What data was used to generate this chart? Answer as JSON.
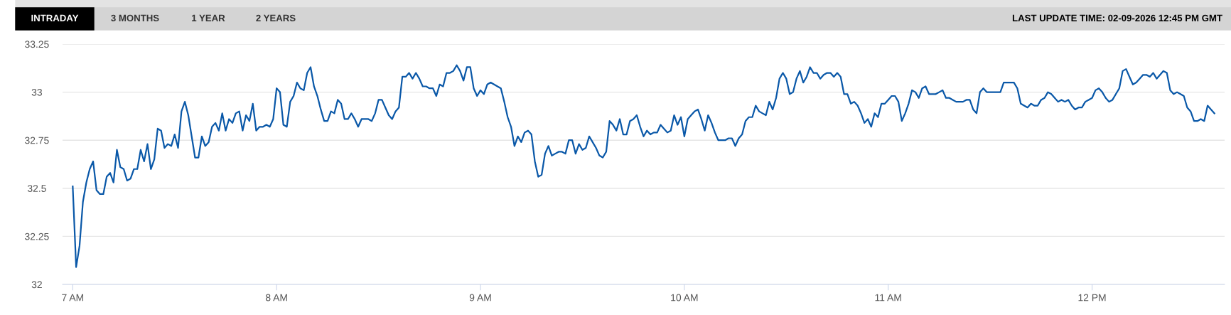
{
  "chart_data": {
    "type": "line",
    "subtitle": "LAST UPDATE TIME: 02-09-2026 12:45 PM GMT",
    "annotations": [
      "INTRADAY",
      "3 MONTHS",
      "1 YEAR",
      "2 YEARS"
    ],
    "x": [
      "2026-02-09T07:00",
      "2026-02-09T07:01",
      "2026-02-09T07:02",
      "2026-02-09T07:03",
      "2026-02-09T07:04",
      "2026-02-09T07:05",
      "2026-02-09T07:06",
      "2026-02-09T07:07",
      "2026-02-09T07:08",
      "2026-02-09T07:09",
      "2026-02-09T07:10",
      "2026-02-09T07:11",
      "2026-02-09T07:12",
      "2026-02-09T07:13",
      "2026-02-09T07:14",
      "2026-02-09T07:15",
      "2026-02-09T07:16",
      "2026-02-09T07:17",
      "2026-02-09T07:18",
      "2026-02-09T07:19",
      "2026-02-09T07:20",
      "2026-02-09T07:21",
      "2026-02-09T07:22",
      "2026-02-09T07:23",
      "2026-02-09T07:24",
      "2026-02-09T07:25",
      "2026-02-09T07:26",
      "2026-02-09T07:27",
      "2026-02-09T07:28",
      "2026-02-09T07:29",
      "2026-02-09T07:30",
      "2026-02-09T07:31",
      "2026-02-09T07:32",
      "2026-02-09T07:33",
      "2026-02-09T07:34",
      "2026-02-09T07:35",
      "2026-02-09T07:36",
      "2026-02-09T07:37",
      "2026-02-09T07:38",
      "2026-02-09T07:39",
      "2026-02-09T07:40",
      "2026-02-09T07:41",
      "2026-02-09T07:42",
      "2026-02-09T07:43",
      "2026-02-09T07:44",
      "2026-02-09T07:45",
      "2026-02-09T07:46",
      "2026-02-09T07:47",
      "2026-02-09T07:48",
      "2026-02-09T07:49",
      "2026-02-09T07:50",
      "2026-02-09T07:51",
      "2026-02-09T07:52",
      "2026-02-09T07:53",
      "2026-02-09T07:54",
      "2026-02-09T07:55",
      "2026-02-09T07:56",
      "2026-02-09T07:57",
      "2026-02-09T07:58",
      "2026-02-09T07:59",
      "2026-02-09T08:00",
      "2026-02-09T08:01",
      "2026-02-09T08:02",
      "2026-02-09T08:03",
      "2026-02-09T08:04",
      "2026-02-09T08:05",
      "2026-02-09T08:06",
      "2026-02-09T08:07",
      "2026-02-09T08:08",
      "2026-02-09T08:09",
      "2026-02-09T08:10",
      "2026-02-09T08:11",
      "2026-02-09T08:12",
      "2026-02-09T08:13",
      "2026-02-09T08:14",
      "2026-02-09T08:15",
      "2026-02-09T08:16",
      "2026-02-09T08:17",
      "2026-02-09T08:18",
      "2026-02-09T08:19",
      "2026-02-09T08:20",
      "2026-02-09T08:21",
      "2026-02-09T08:22",
      "2026-02-09T08:23",
      "2026-02-09T08:24",
      "2026-02-09T08:25",
      "2026-02-09T08:26",
      "2026-02-09T08:27",
      "2026-02-09T08:28",
      "2026-02-09T08:29",
      "2026-02-09T08:30",
      "2026-02-09T08:31",
      "2026-02-09T08:32",
      "2026-02-09T08:33",
      "2026-02-09T08:34",
      "2026-02-09T08:35",
      "2026-02-09T08:36",
      "2026-02-09T08:37",
      "2026-02-09T08:38",
      "2026-02-09T08:39",
      "2026-02-09T08:40",
      "2026-02-09T08:41",
      "2026-02-09T08:42",
      "2026-02-09T08:43",
      "2026-02-09T08:44",
      "2026-02-09T08:45",
      "2026-02-09T08:46",
      "2026-02-09T08:47",
      "2026-02-09T08:48",
      "2026-02-09T08:49",
      "2026-02-09T08:50",
      "2026-02-09T08:51",
      "2026-02-09T08:52",
      "2026-02-09T08:53",
      "2026-02-09T08:54",
      "2026-02-09T08:55",
      "2026-02-09T08:56",
      "2026-02-09T08:57",
      "2026-02-09T08:58",
      "2026-02-09T08:59",
      "2026-02-09T09:00",
      "2026-02-09T09:01",
      "2026-02-09T09:02",
      "2026-02-09T09:03",
      "2026-02-09T09:04",
      "2026-02-09T09:05",
      "2026-02-09T09:06",
      "2026-02-09T09:07",
      "2026-02-09T09:08",
      "2026-02-09T09:09",
      "2026-02-09T09:10",
      "2026-02-09T09:11",
      "2026-02-09T09:12",
      "2026-02-09T09:13",
      "2026-02-09T09:14",
      "2026-02-09T09:15",
      "2026-02-09T09:16",
      "2026-02-09T09:17",
      "2026-02-09T09:18",
      "2026-02-09T09:19",
      "2026-02-09T09:20",
      "2026-02-09T09:21",
      "2026-02-09T09:22",
      "2026-02-09T09:23",
      "2026-02-09T09:24",
      "2026-02-09T09:25",
      "2026-02-09T09:26",
      "2026-02-09T09:27",
      "2026-02-09T09:28",
      "2026-02-09T09:29",
      "2026-02-09T09:30",
      "2026-02-09T09:31",
      "2026-02-09T09:32",
      "2026-02-09T09:33",
      "2026-02-09T09:34",
      "2026-02-09T09:35",
      "2026-02-09T09:36",
      "2026-02-09T09:37",
      "2026-02-09T09:38",
      "2026-02-09T09:39",
      "2026-02-09T09:40",
      "2026-02-09T09:41",
      "2026-02-09T09:42",
      "2026-02-09T09:43",
      "2026-02-09T09:44",
      "2026-02-09T09:45",
      "2026-02-09T09:46",
      "2026-02-09T09:47",
      "2026-02-09T09:48",
      "2026-02-09T09:49",
      "2026-02-09T09:50",
      "2026-02-09T09:51",
      "2026-02-09T09:52",
      "2026-02-09T09:53",
      "2026-02-09T09:54",
      "2026-02-09T09:55",
      "2026-02-09T09:56",
      "2026-02-09T09:57",
      "2026-02-09T09:58",
      "2026-02-09T09:59",
      "2026-02-09T10:00",
      "2026-02-09T10:01",
      "2026-02-09T10:02",
      "2026-02-09T10:03",
      "2026-02-09T10:04",
      "2026-02-09T10:05",
      "2026-02-09T10:06",
      "2026-02-09T10:07",
      "2026-02-09T10:08",
      "2026-02-09T10:09",
      "2026-02-09T10:10",
      "2026-02-09T10:11",
      "2026-02-09T10:12",
      "2026-02-09T10:13",
      "2026-02-09T10:14",
      "2026-02-09T10:15",
      "2026-02-09T10:16",
      "2026-02-09T10:17",
      "2026-02-09T10:18",
      "2026-02-09T10:19",
      "2026-02-09T10:20",
      "2026-02-09T10:21",
      "2026-02-09T10:22",
      "2026-02-09T10:23",
      "2026-02-09T10:24",
      "2026-02-09T10:25",
      "2026-02-09T10:26",
      "2026-02-09T10:27",
      "2026-02-09T10:28",
      "2026-02-09T10:29",
      "2026-02-09T10:30",
      "2026-02-09T10:31",
      "2026-02-09T10:32",
      "2026-02-09T10:33",
      "2026-02-09T10:34",
      "2026-02-09T10:35",
      "2026-02-09T10:36",
      "2026-02-09T10:37",
      "2026-02-09T10:38",
      "2026-02-09T10:39",
      "2026-02-09T10:40",
      "2026-02-09T10:41",
      "2026-02-09T10:42",
      "2026-02-09T10:43",
      "2026-02-09T10:44",
      "2026-02-09T10:45",
      "2026-02-09T10:46",
      "2026-02-09T10:47",
      "2026-02-09T10:48",
      "2026-02-09T10:49",
      "2026-02-09T10:50",
      "2026-02-09T10:51",
      "2026-02-09T10:52",
      "2026-02-09T10:53",
      "2026-02-09T10:54",
      "2026-02-09T10:55",
      "2026-02-09T10:56",
      "2026-02-09T10:57",
      "2026-02-09T10:58",
      "2026-02-09T10:59",
      "2026-02-09T11:00",
      "2026-02-09T11:01",
      "2026-02-09T11:02",
      "2026-02-09T11:03",
      "2026-02-09T11:04",
      "2026-02-09T11:05",
      "2026-02-09T11:06",
      "2026-02-09T11:07",
      "2026-02-09T11:08",
      "2026-02-09T11:09",
      "2026-02-09T11:10",
      "2026-02-09T11:11",
      "2026-02-09T11:12",
      "2026-02-09T11:13",
      "2026-02-09T11:14",
      "2026-02-09T11:15",
      "2026-02-09T11:16",
      "2026-02-09T11:17",
      "2026-02-09T11:18",
      "2026-02-09T11:19",
      "2026-02-09T11:20",
      "2026-02-09T11:21",
      "2026-02-09T11:22",
      "2026-02-09T11:23",
      "2026-02-09T11:24",
      "2026-02-09T11:25",
      "2026-02-09T11:26",
      "2026-02-09T11:27",
      "2026-02-09T11:28",
      "2026-02-09T11:29",
      "2026-02-09T11:30",
      "2026-02-09T11:31",
      "2026-02-09T11:32",
      "2026-02-09T11:33",
      "2026-02-09T11:34",
      "2026-02-09T11:35",
      "2026-02-09T11:36",
      "2026-02-09T11:37",
      "2026-02-09T11:38",
      "2026-02-09T11:39",
      "2026-02-09T11:40",
      "2026-02-09T11:41",
      "2026-02-09T11:42",
      "2026-02-09T11:43",
      "2026-02-09T11:44",
      "2026-02-09T11:45",
      "2026-02-09T11:46",
      "2026-02-09T11:47",
      "2026-02-09T11:48",
      "2026-02-09T11:49",
      "2026-02-09T11:50",
      "2026-02-09T11:51",
      "2026-02-09T11:52",
      "2026-02-09T11:53",
      "2026-02-09T11:54",
      "2026-02-09T11:55",
      "2026-02-09T11:56",
      "2026-02-09T11:57",
      "2026-02-09T11:58",
      "2026-02-09T11:59",
      "2026-02-09T12:00",
      "2026-02-09T12:01",
      "2026-02-09T12:02",
      "2026-02-09T12:03",
      "2026-02-09T12:04",
      "2026-02-09T12:05",
      "2026-02-09T12:06",
      "2026-02-09T12:07",
      "2026-02-09T12:08",
      "2026-02-09T12:09",
      "2026-02-09T12:10",
      "2026-02-09T12:11",
      "2026-02-09T12:12",
      "2026-02-09T12:13",
      "2026-02-09T12:14",
      "2026-02-09T12:15",
      "2026-02-09T12:16",
      "2026-02-09T12:17",
      "2026-02-09T12:18",
      "2026-02-09T12:19",
      "2026-02-09T12:20",
      "2026-02-09T12:21",
      "2026-02-09T12:22",
      "2026-02-09T12:23",
      "2026-02-09T12:24",
      "2026-02-09T12:25",
      "2026-02-09T12:26",
      "2026-02-09T12:27",
      "2026-02-09T12:28",
      "2026-02-09T12:29",
      "2026-02-09T12:30",
      "2026-02-09T12:31",
      "2026-02-09T12:32",
      "2026-02-09T12:33",
      "2026-02-09T12:34",
      "2026-02-09T12:35",
      "2026-02-09T12:36"
    ],
    "series": [
      {
        "color": "#0a58a8",
        "values": [
          32.51,
          32.09,
          32.2,
          32.43,
          32.53,
          32.6,
          32.64,
          32.49,
          32.47,
          32.47,
          32.56,
          32.58,
          32.53,
          32.7,
          32.61,
          32.6,
          32.54,
          32.55,
          32.6,
          32.6,
          32.7,
          32.64,
          32.73,
          32.6,
          32.65,
          32.81,
          32.8,
          32.71,
          32.73,
          32.72,
          32.78,
          32.71,
          32.9,
          32.95,
          32.88,
          32.77,
          32.66,
          32.66,
          32.77,
          32.72,
          32.74,
          32.82,
          32.84,
          32.8,
          32.89,
          32.8,
          32.86,
          32.84,
          32.89,
          32.9,
          32.8,
          32.88,
          32.85,
          32.94,
          32.8,
          32.82,
          32.82,
          32.83,
          32.82,
          32.86,
          33.02,
          33.0,
          32.83,
          32.82,
          32.95,
          32.98,
          33.05,
          33.02,
          33.01,
          33.1,
          33.13,
          33.03,
          32.98,
          32.91,
          32.85,
          32.85,
          32.9,
          32.89,
          32.96,
          32.94,
          32.86,
          32.86,
          32.89,
          32.86,
          32.82,
          32.86,
          32.86,
          32.86,
          32.85,
          32.89,
          32.96,
          32.96,
          32.92,
          32.88,
          32.86,
          32.9,
          32.92,
          33.08,
          33.08,
          33.1,
          33.07,
          33.1,
          33.07,
          33.03,
          33.03,
          33.02,
          33.02,
          32.98,
          33.04,
          33.03,
          33.1,
          33.1,
          33.11,
          33.14,
          33.11,
          33.06,
          33.13,
          33.13,
          33.02,
          32.98,
          33.01,
          32.99,
          33.04,
          33.05,
          33.04,
          33.03,
          33.02,
          32.95,
          32.87,
          32.82,
          32.72,
          32.77,
          32.74,
          32.79,
          32.8,
          32.78,
          32.64,
          32.56,
          32.57,
          32.68,
          32.72,
          32.67,
          32.68,
          32.69,
          32.69,
          32.68,
          32.75,
          32.75,
          32.68,
          32.73,
          32.7,
          32.71,
          32.77,
          32.74,
          32.71,
          32.67,
          32.66,
          32.69,
          32.85,
          32.83,
          32.8,
          32.86,
          32.78,
          32.78,
          32.85,
          32.86,
          32.88,
          32.82,
          32.77,
          32.8,
          32.78,
          32.79,
          32.79,
          32.83,
          32.81,
          32.79,
          32.8,
          32.88,
          32.83,
          32.87,
          32.77,
          32.86,
          32.88,
          32.9,
          32.91,
          32.86,
          32.8,
          32.88,
          32.84,
          32.79,
          32.75,
          32.75,
          32.75,
          32.76,
          32.76,
          32.72,
          32.76,
          32.78,
          32.85,
          32.87,
          32.87,
          32.93,
          32.9,
          32.89,
          32.88,
          32.95,
          32.91,
          32.97,
          33.07,
          33.1,
          33.07,
          32.99,
          33.0,
          33.07,
          33.11,
          33.05,
          33.08,
          33.13,
          33.1,
          33.1,
          33.07,
          33.09,
          33.1,
          33.1,
          33.08,
          33.1,
          33.08,
          32.99,
          32.99,
          32.94,
          32.95,
          32.93,
          32.89,
          32.84,
          32.86,
          32.82,
          32.89,
          32.87,
          32.94,
          32.94,
          32.96,
          32.98,
          32.98,
          32.95,
          32.85,
          32.89,
          32.94,
          33.01,
          33.0,
          32.97,
          33.02,
          33.03,
          32.99,
          32.99,
          32.99,
          33.0,
          33.01,
          32.97,
          32.97,
          32.96,
          32.95,
          32.95,
          32.95,
          32.96,
          32.96,
          32.91,
          32.89,
          33.0,
          33.02,
          33.0,
          33.0,
          33.0,
          33.0,
          33.0,
          33.05,
          33.05,
          33.05,
          33.05,
          33.02,
          32.94,
          32.93,
          32.92,
          32.94,
          32.93,
          32.93,
          32.96,
          32.97,
          33.0,
          32.99,
          32.97,
          32.95,
          32.96,
          32.95,
          32.96,
          32.93,
          32.91,
          32.92,
          32.92,
          32.95,
          32.96,
          32.97,
          33.01,
          33.02,
          33.0,
          32.97,
          32.95,
          32.96,
          32.99,
          33.02,
          33.11,
          33.12,
          33.08,
          33.04,
          33.05,
          33.07,
          33.09,
          33.09,
          33.08,
          33.1,
          33.07,
          33.09,
          33.11,
          33.1,
          33.01,
          32.99,
          33.0,
          32.99,
          32.98,
          32.92,
          32.9,
          32.85,
          32.85,
          32.86,
          32.85,
          32.93,
          32.91,
          32.89
        ]
      }
    ],
    "xlim": [
      "2026-02-09T06:57",
      "2026-02-09T12:39"
    ],
    "xticks": [
      {
        "value": "2026-02-09T07:00",
        "label": "7 AM"
      },
      {
        "value": "2026-02-09T08:00",
        "label": "8 AM"
      },
      {
        "value": "2026-02-09T09:00",
        "label": "9 AM"
      },
      {
        "value": "2026-02-09T10:00",
        "label": "10 AM"
      },
      {
        "value": "2026-02-09T11:00",
        "label": "11 AM"
      },
      {
        "value": "2026-02-09T12:00",
        "label": "12 PM"
      }
    ],
    "ylim": [
      32,
      33.25
    ],
    "yticks": [
      32,
      32.25,
      32.5,
      32.75,
      33,
      33.25
    ],
    "grid": "y"
  }
}
